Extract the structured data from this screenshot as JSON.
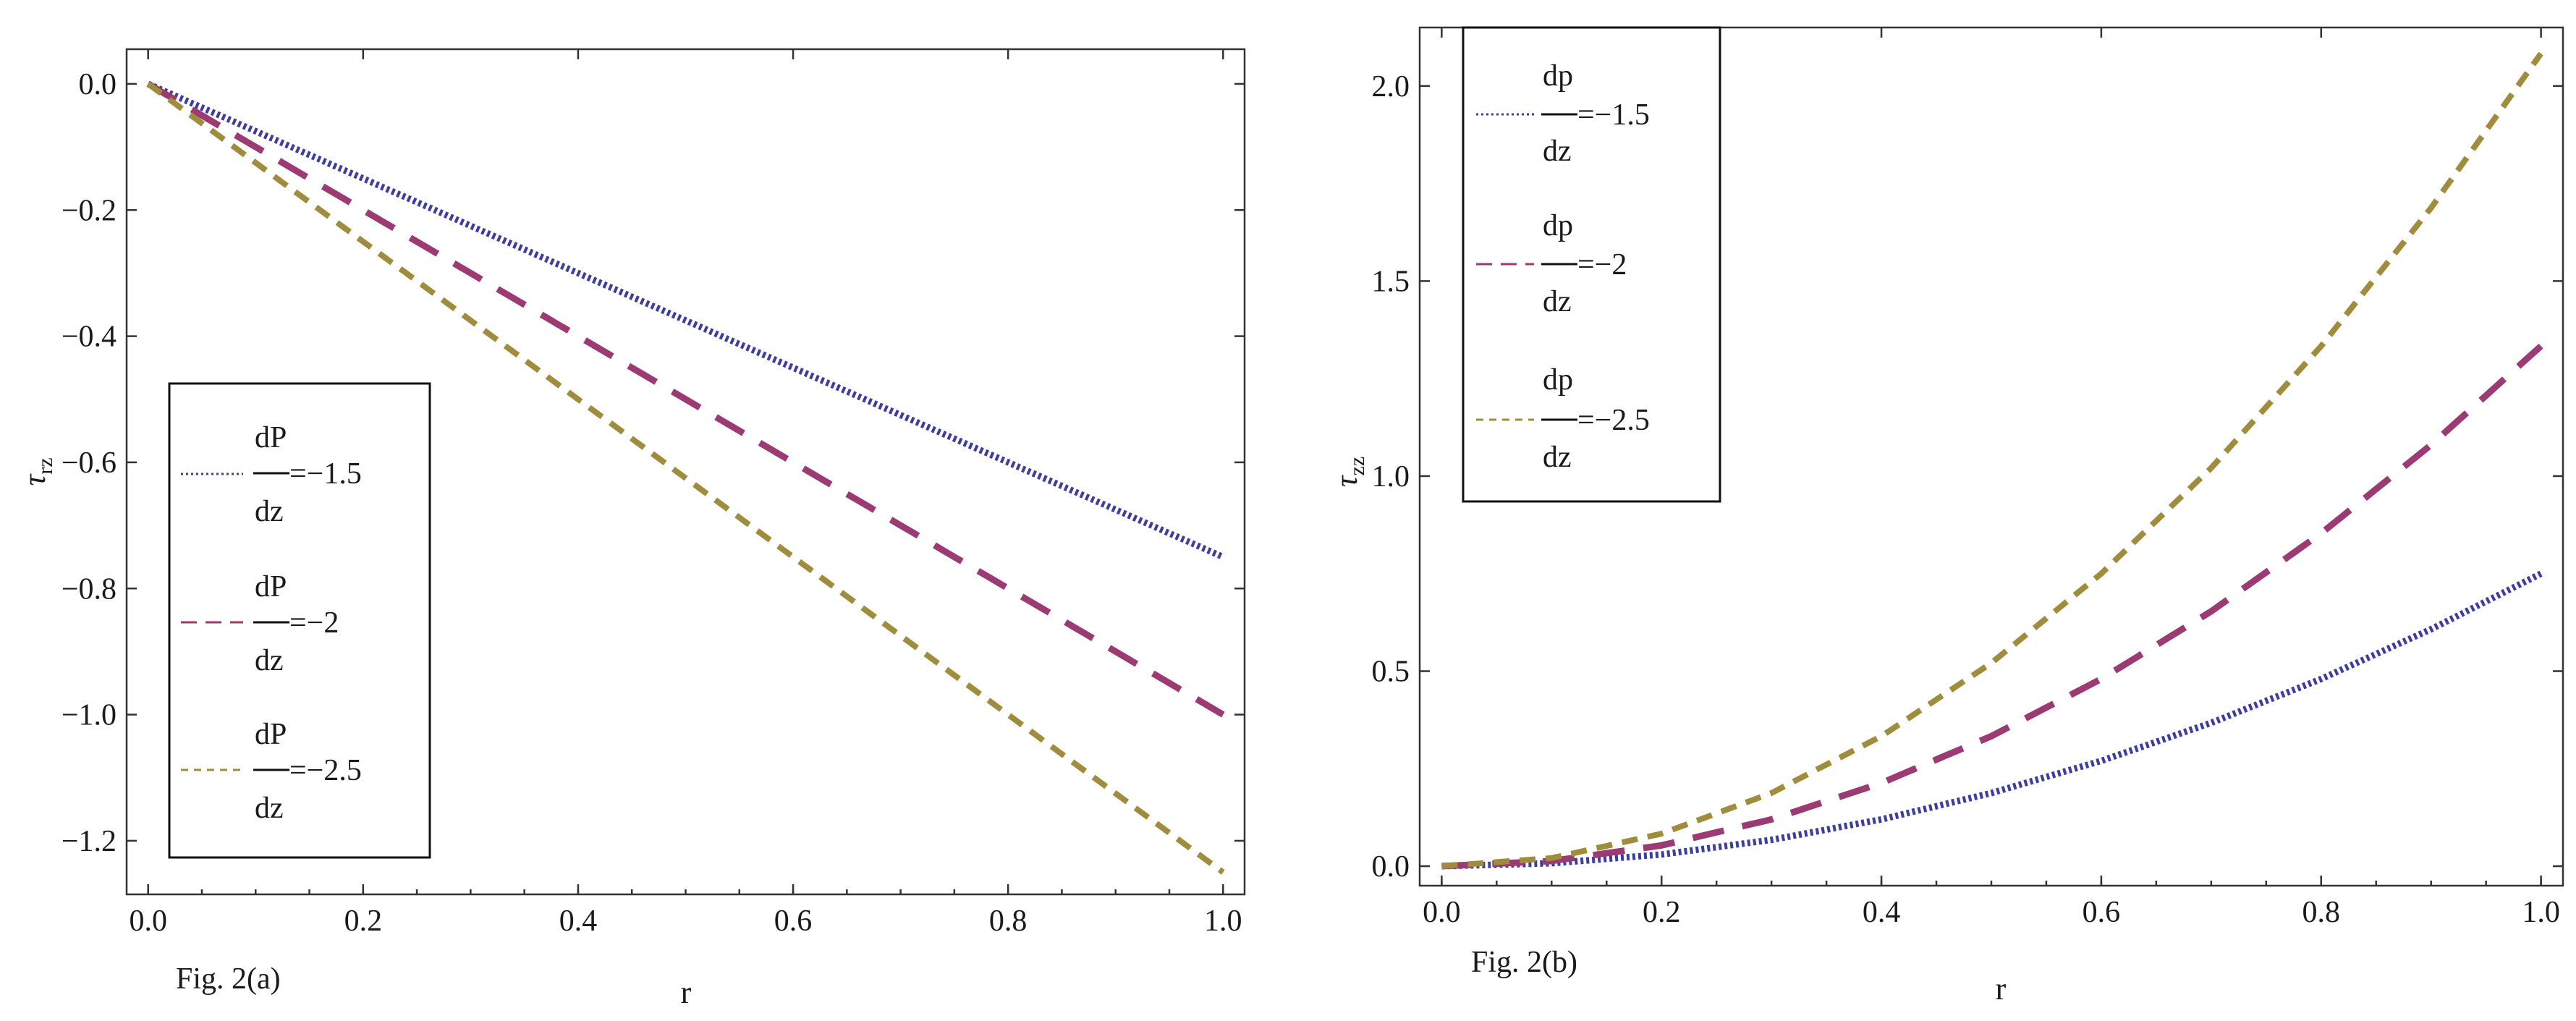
{
  "colors": {
    "blue": "#3d3d9f",
    "magenta": "#9c3a73",
    "olive": "#9f8c3c",
    "axis": "#333333"
  },
  "chart_data": [
    {
      "id": "a",
      "type": "line",
      "caption": "Fig. 2(a)",
      "xlabel": "r",
      "ylabel": "τ",
      "ylabel_sub": "rz",
      "xlim": [
        -0.02,
        1.02
      ],
      "ylim": [
        -1.285,
        0.055
      ],
      "xticks": [
        0.0,
        0.2,
        0.4,
        0.6,
        0.8,
        1.0
      ],
      "xtick_labels": [
        "0.0",
        "0.2",
        "0.4",
        "0.6",
        "0.8",
        "1.0"
      ],
      "yticks": [
        0.0,
        -0.2,
        -0.4,
        -0.6,
        -0.8,
        -1.0,
        -1.2
      ],
      "ytick_labels": [
        "0.0",
        "−0.2",
        "−0.4",
        "−0.6",
        "−0.8",
        "−1.0",
        "−1.2"
      ],
      "legend": {
        "position": "center-left",
        "numerator": "dP",
        "denominator": "dz"
      },
      "series": [
        {
          "name": "dP/dz = −1.5",
          "legend_value": "=−1.5",
          "color": "#3d3d9f",
          "style": "dotted",
          "x": [
            0,
            0.1,
            0.2,
            0.3,
            0.4,
            0.5,
            0.6,
            0.7,
            0.8,
            0.9,
            1.0
          ],
          "y": [
            0,
            -0.075,
            -0.15,
            -0.225,
            -0.3,
            -0.375,
            -0.45,
            -0.525,
            -0.6,
            -0.675,
            -0.75
          ]
        },
        {
          "name": "dP/dz = −2",
          "legend_value": "=−2",
          "color": "#9c3a73",
          "style": "longdash",
          "x": [
            0,
            0.1,
            0.2,
            0.3,
            0.4,
            0.5,
            0.6,
            0.7,
            0.8,
            0.9,
            1.0
          ],
          "y": [
            0,
            -0.1,
            -0.2,
            -0.3,
            -0.4,
            -0.5,
            -0.6,
            -0.7,
            -0.8,
            -0.9,
            -1.0
          ]
        },
        {
          "name": "dP/dz = −2.5",
          "legend_value": "=−2.5",
          "color": "#9f8c3c",
          "style": "dashed",
          "x": [
            0,
            0.1,
            0.2,
            0.3,
            0.4,
            0.5,
            0.6,
            0.7,
            0.8,
            0.9,
            1.0
          ],
          "y": [
            0,
            -0.125,
            -0.25,
            -0.375,
            -0.5,
            -0.625,
            -0.75,
            -0.875,
            -1.0,
            -1.125,
            -1.25
          ]
        }
      ]
    },
    {
      "id": "b",
      "type": "line",
      "caption": "Fig. 2(b)",
      "xlabel": "r",
      "ylabel": "τ",
      "ylabel_sub": "zz",
      "xlim": [
        -0.02,
        1.02
      ],
      "ylim": [
        -0.05,
        2.15
      ],
      "xticks": [
        0.0,
        0.2,
        0.4,
        0.6,
        0.8,
        1.0
      ],
      "xtick_labels": [
        "0.0",
        "0.2",
        "0.4",
        "0.6",
        "0.8",
        "1.0"
      ],
      "yticks": [
        0.0,
        0.5,
        1.0,
        1.5,
        2.0
      ],
      "ytick_labels": [
        "0.0",
        "0.5",
        "1.0",
        "1.5",
        "2.0"
      ],
      "legend": {
        "position": "top-left",
        "numerator": "dp",
        "denominator": "dz"
      },
      "series": [
        {
          "name": "dp/dz = −1.5",
          "legend_value": "=−1.5",
          "color": "#3d3d9f",
          "style": "dotted",
          "x": [
            0,
            0.1,
            0.2,
            0.3,
            0.4,
            0.5,
            0.6,
            0.7,
            0.8,
            0.9,
            1.0
          ],
          "y": [
            0,
            0.0075,
            0.03,
            0.0675,
            0.12,
            0.1875,
            0.27,
            0.3675,
            0.48,
            0.6075,
            0.75
          ]
        },
        {
          "name": "dp/dz = −2",
          "legend_value": "=−2",
          "color": "#9c3a73",
          "style": "longdash",
          "x": [
            0,
            0.1,
            0.2,
            0.3,
            0.4,
            0.5,
            0.6,
            0.7,
            0.8,
            0.9,
            1.0
          ],
          "y": [
            0,
            0.0133,
            0.0533,
            0.12,
            0.2133,
            0.3333,
            0.48,
            0.6533,
            0.8533,
            1.08,
            1.3333
          ]
        },
        {
          "name": "dp/dz = −2.5",
          "legend_value": "=−2.5",
          "color": "#9f8c3c",
          "style": "dashed",
          "x": [
            0,
            0.1,
            0.2,
            0.3,
            0.4,
            0.5,
            0.6,
            0.7,
            0.8,
            0.9,
            1.0
          ],
          "y": [
            0,
            0.0208,
            0.0833,
            0.1875,
            0.3333,
            0.5208,
            0.75,
            1.0208,
            1.3333,
            1.6875,
            2.0833
          ]
        }
      ]
    }
  ]
}
